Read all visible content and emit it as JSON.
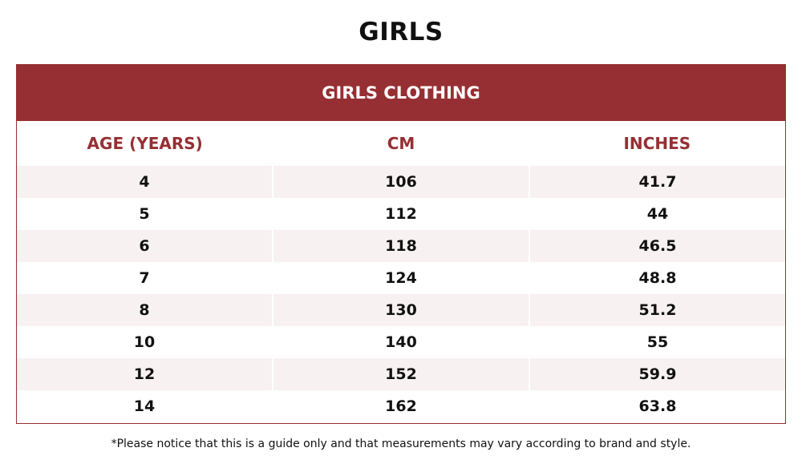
{
  "page": {
    "title": "GIRLS"
  },
  "table": {
    "caption": "GIRLS CLOTHING",
    "columns": [
      "AGE (YEARS)",
      "CM",
      "INCHES"
    ],
    "rows": [
      [
        "4",
        "106",
        "41.7"
      ],
      [
        "5",
        "112",
        "44"
      ],
      [
        "6",
        "118",
        "46.5"
      ],
      [
        "7",
        "124",
        "48.8"
      ],
      [
        "8",
        "130",
        "51.2"
      ],
      [
        "10",
        "140",
        "55"
      ],
      [
        "12",
        "152",
        "59.9"
      ],
      [
        "14",
        "162",
        "63.8"
      ]
    ]
  },
  "footnote": "*Please notice that this is a guide only and that measurements may vary according to brand and style.",
  "colors": {
    "accent": "#962f33",
    "row_shade": "#f7f1f1"
  }
}
